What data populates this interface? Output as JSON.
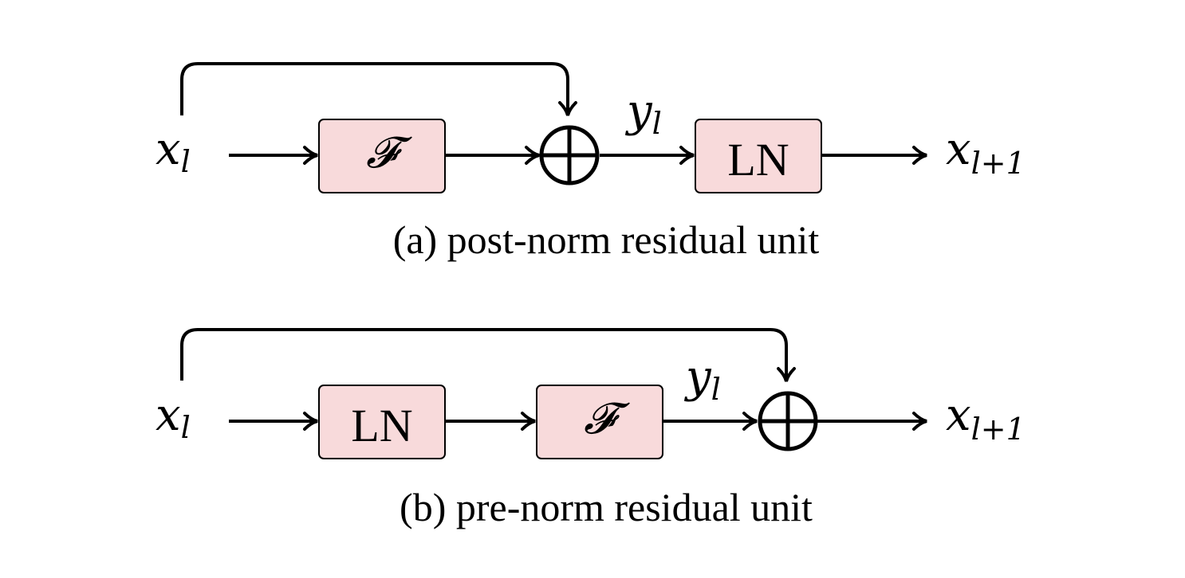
{
  "diagrams": [
    {
      "id": "post-norm",
      "input_var": "x",
      "input_sub": "l",
      "output_var": "x",
      "output_sub": "l+1",
      "intermediate_var": "y",
      "intermediate_sub": "l",
      "block1_label": "𝓕",
      "block2_label": "LN",
      "caption": "(a) post-norm residual unit"
    },
    {
      "id": "pre-norm",
      "input_var": "x",
      "input_sub": "l",
      "output_var": "x",
      "output_sub": "l+1",
      "intermediate_var": "y",
      "intermediate_sub": "l",
      "block1_label": "LN",
      "block2_label": "𝓕",
      "caption": "(b) pre-norm residual unit"
    }
  ]
}
